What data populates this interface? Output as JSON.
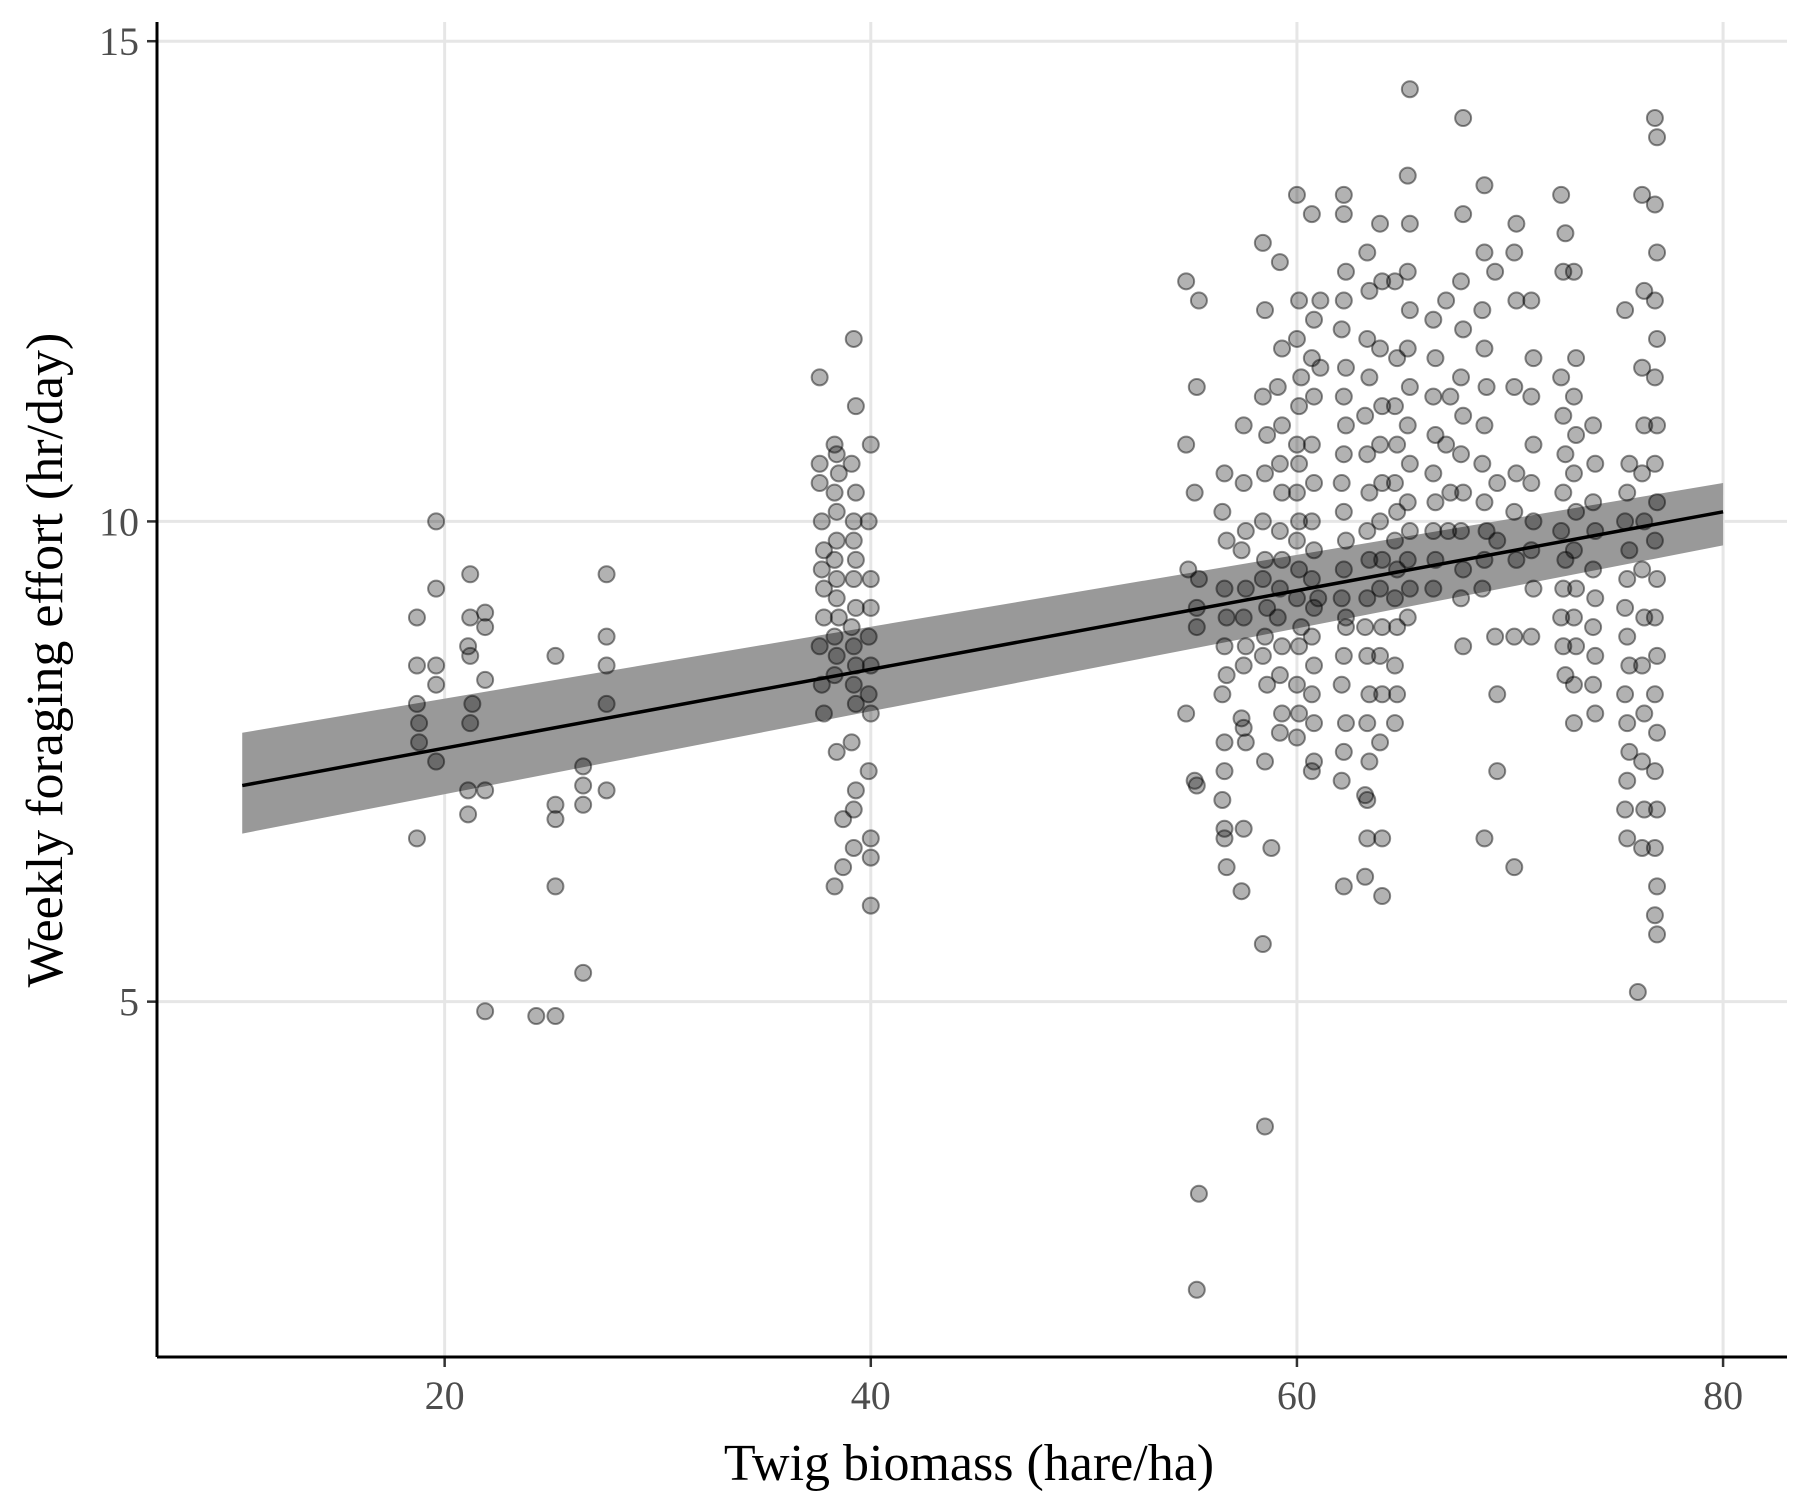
{
  "chart_data": {
    "type": "scatter",
    "xlabel": "Twig biomass (hare/ha)",
    "ylabel": "Weekly foraging effort (hr/day)",
    "xlim": [
      6.5,
      83
    ],
    "ylim": [
      1.3,
      15.2
    ],
    "x_ticks": [
      "20",
      "40",
      "60",
      "80"
    ],
    "y_ticks": [
      "5",
      "10",
      "15"
    ],
    "grid": true,
    "point_color": "#000000",
    "band_color": "#999999",
    "line_color": "#000000",
    "fit": {
      "type": "linear",
      "x": [
        10.5,
        80
      ],
      "y": [
        7.25,
        10.1
      ]
    },
    "ci_band": {
      "x": [
        10.5,
        80
      ],
      "lower": [
        6.75,
        9.75
      ],
      "upper": [
        7.8,
        10.4
      ]
    },
    "points": [
      [
        18.7,
        9.0
      ],
      [
        18.7,
        8.5
      ],
      [
        18.7,
        8.1
      ],
      [
        18.8,
        7.9
      ],
      [
        18.8,
        7.7
      ],
      [
        18.7,
        6.7
      ],
      [
        19.6,
        10.0
      ],
      [
        19.6,
        9.3
      ],
      [
        19.6,
        8.5
      ],
      [
        19.6,
        8.3
      ],
      [
        19.6,
        7.5
      ],
      [
        21.2,
        9.45
      ],
      [
        21.2,
        9.0
      ],
      [
        21.1,
        8.7
      ],
      [
        21.2,
        8.6
      ],
      [
        21.3,
        8.1
      ],
      [
        21.2,
        7.9
      ],
      [
        21.1,
        7.2
      ],
      [
        21.1,
        6.95
      ],
      [
        21.9,
        9.05
      ],
      [
        21.9,
        8.9
      ],
      [
        21.9,
        8.35
      ],
      [
        21.9,
        7.2
      ],
      [
        21.9,
        4.9
      ],
      [
        24.3,
        4.85
      ],
      [
        25.2,
        8.6
      ],
      [
        25.2,
        7.05
      ],
      [
        25.2,
        6.9
      ],
      [
        25.2,
        6.2
      ],
      [
        25.2,
        4.85
      ],
      [
        26.5,
        7.45
      ],
      [
        26.5,
        7.25
      ],
      [
        26.5,
        7.05
      ],
      [
        26.5,
        5.3
      ],
      [
        27.6,
        9.45
      ],
      [
        27.6,
        8.8
      ],
      [
        27.6,
        8.5
      ],
      [
        27.6,
        8.1
      ],
      [
        27.6,
        7.2
      ],
      [
        37.6,
        11.5
      ],
      [
        37.6,
        10.6
      ],
      [
        37.6,
        10.4
      ],
      [
        37.7,
        10.0
      ],
      [
        37.8,
        9.7
      ],
      [
        37.7,
        9.5
      ],
      [
        37.8,
        9.3
      ],
      [
        37.8,
        9.0
      ],
      [
        37.6,
        8.7
      ],
      [
        37.7,
        8.3
      ],
      [
        37.8,
        8.0
      ],
      [
        38.3,
        10.8
      ],
      [
        38.4,
        10.7
      ],
      [
        38.5,
        10.5
      ],
      [
        38.3,
        10.3
      ],
      [
        38.4,
        10.1
      ],
      [
        38.4,
        9.8
      ],
      [
        38.3,
        9.6
      ],
      [
        38.4,
        9.4
      ],
      [
        38.4,
        9.2
      ],
      [
        38.5,
        9.0
      ],
      [
        38.3,
        8.8
      ],
      [
        38.4,
        8.6
      ],
      [
        38.3,
        8.4
      ],
      [
        38.4,
        7.6
      ],
      [
        38.3,
        6.2
      ],
      [
        39.2,
        11.9
      ],
      [
        39.3,
        11.2
      ],
      [
        39.1,
        10.6
      ],
      [
        39.3,
        10.3
      ],
      [
        39.2,
        10.0
      ],
      [
        39.2,
        9.8
      ],
      [
        39.3,
        9.6
      ],
      [
        39.2,
        9.4
      ],
      [
        39.3,
        9.1
      ],
      [
        39.1,
        8.9
      ],
      [
        39.2,
        8.7
      ],
      [
        39.3,
        8.5
      ],
      [
        39.2,
        8.3
      ],
      [
        39.3,
        8.1
      ],
      [
        39.1,
        7.7
      ],
      [
        39.3,
        7.2
      ],
      [
        39.2,
        7.0
      ],
      [
        39.2,
        6.6
      ],
      [
        38.7,
        6.9
      ],
      [
        38.7,
        6.4
      ],
      [
        40.0,
        10.8
      ],
      [
        39.9,
        10.0
      ],
      [
        40.0,
        9.4
      ],
      [
        40.0,
        9.1
      ],
      [
        39.9,
        8.8
      ],
      [
        40.0,
        8.5
      ],
      [
        39.9,
        8.2
      ],
      [
        40.0,
        8.0
      ],
      [
        39.9,
        7.4
      ],
      [
        40.0,
        6.7
      ],
      [
        40.0,
        6.5
      ],
      [
        40.0,
        6.0
      ],
      [
        54.8,
        12.5
      ],
      [
        54.8,
        10.8
      ],
      [
        54.9,
        9.5
      ],
      [
        54.8,
        8.0
      ],
      [
        55.3,
        11.4
      ],
      [
        55.2,
        10.3
      ],
      [
        55.4,
        9.4
      ],
      [
        55.3,
        9.1
      ],
      [
        55.3,
        8.9
      ],
      [
        55.2,
        7.3
      ],
      [
        55.3,
        7.25
      ],
      [
        55.4,
        3.0
      ],
      [
        55.3,
        2.0
      ],
      [
        55.4,
        12.3
      ],
      [
        56.6,
        10.5
      ],
      [
        56.5,
        10.1
      ],
      [
        56.7,
        9.8
      ],
      [
        56.6,
        9.3
      ],
      [
        56.7,
        9.0
      ],
      [
        56.6,
        8.7
      ],
      [
        56.7,
        8.4
      ],
      [
        56.5,
        8.2
      ],
      [
        56.6,
        7.7
      ],
      [
        56.6,
        7.4
      ],
      [
        56.5,
        7.1
      ],
      [
        56.6,
        6.8
      ],
      [
        56.6,
        6.7
      ],
      [
        56.7,
        6.4
      ],
      [
        57.5,
        11.0
      ],
      [
        57.5,
        10.4
      ],
      [
        57.6,
        9.9
      ],
      [
        57.4,
        9.7
      ],
      [
        57.6,
        9.3
      ],
      [
        57.5,
        9.0
      ],
      [
        57.6,
        8.7
      ],
      [
        57.5,
        8.5
      ],
      [
        57.4,
        7.95
      ],
      [
        57.5,
        7.85
      ],
      [
        57.6,
        7.7
      ],
      [
        57.5,
        6.8
      ],
      [
        57.4,
        6.15
      ],
      [
        58.4,
        12.9
      ],
      [
        58.5,
        12.2
      ],
      [
        58.4,
        11.3
      ],
      [
        58.6,
        10.9
      ],
      [
        58.5,
        10.5
      ],
      [
        58.4,
        10.0
      ],
      [
        58.5,
        9.6
      ],
      [
        58.4,
        9.4
      ],
      [
        58.6,
        9.1
      ],
      [
        58.5,
        8.8
      ],
      [
        58.4,
        8.6
      ],
      [
        58.6,
        8.3
      ],
      [
        58.5,
        7.5
      ],
      [
        58.4,
        5.6
      ],
      [
        58.5,
        3.7
      ],
      [
        58.8,
        6.6
      ],
      [
        59.2,
        12.7
      ],
      [
        59.3,
        11.8
      ],
      [
        59.1,
        11.4
      ],
      [
        59.3,
        11.0
      ],
      [
        59.2,
        10.6
      ],
      [
        59.3,
        10.3
      ],
      [
        59.2,
        9.9
      ],
      [
        59.3,
        9.6
      ],
      [
        59.2,
        9.3
      ],
      [
        59.1,
        9.0
      ],
      [
        59.3,
        8.7
      ],
      [
        59.2,
        8.4
      ],
      [
        59.3,
        8.0
      ],
      [
        59.2,
        7.8
      ],
      [
        60.0,
        13.4
      ],
      [
        60.1,
        12.3
      ],
      [
        60.0,
        11.9
      ],
      [
        60.2,
        11.5
      ],
      [
        60.1,
        11.2
      ],
      [
        60.0,
        10.8
      ],
      [
        60.1,
        10.6
      ],
      [
        60.0,
        10.3
      ],
      [
        60.1,
        10.0
      ],
      [
        60.0,
        9.8
      ],
      [
        60.1,
        9.5
      ],
      [
        60.0,
        9.2
      ],
      [
        60.2,
        8.9
      ],
      [
        60.1,
        8.7
      ],
      [
        60.0,
        8.3
      ],
      [
        60.1,
        8.0
      ],
      [
        60.0,
        7.75
      ],
      [
        60.7,
        13.2
      ],
      [
        60.8,
        12.1
      ],
      [
        60.7,
        11.7
      ],
      [
        60.8,
        11.3
      ],
      [
        60.7,
        10.8
      ],
      [
        60.8,
        10.4
      ],
      [
        60.7,
        10.0
      ],
      [
        60.8,
        9.7
      ],
      [
        60.7,
        9.4
      ],
      [
        60.8,
        9.1
      ],
      [
        60.7,
        8.8
      ],
      [
        60.8,
        8.5
      ],
      [
        60.7,
        8.2
      ],
      [
        60.8,
        7.9
      ],
      [
        60.7,
        7.4
      ],
      [
        60.8,
        7.5
      ],
      [
        61.1,
        12.3
      ],
      [
        61.1,
        11.6
      ],
      [
        61.0,
        9.2
      ],
      [
        62.2,
        13.4
      ],
      [
        62.2,
        13.2
      ],
      [
        62.3,
        12.6
      ],
      [
        62.2,
        12.3
      ],
      [
        62.1,
        12.0
      ],
      [
        62.3,
        11.6
      ],
      [
        62.2,
        11.3
      ],
      [
        62.3,
        11.0
      ],
      [
        62.2,
        10.7
      ],
      [
        62.1,
        10.4
      ],
      [
        62.2,
        10.1
      ],
      [
        62.3,
        9.8
      ],
      [
        62.2,
        9.5
      ],
      [
        62.1,
        9.2
      ],
      [
        62.3,
        8.9
      ],
      [
        62.2,
        8.6
      ],
      [
        62.1,
        8.3
      ],
      [
        62.3,
        7.9
      ],
      [
        62.2,
        7.6
      ],
      [
        62.1,
        7.3
      ],
      [
        62.2,
        6.2
      ],
      [
        62.3,
        9.0
      ],
      [
        63.3,
        12.8
      ],
      [
        63.4,
        12.4
      ],
      [
        63.3,
        11.9
      ],
      [
        63.4,
        11.5
      ],
      [
        63.2,
        11.1
      ],
      [
        63.3,
        10.7
      ],
      [
        63.4,
        10.3
      ],
      [
        63.3,
        9.9
      ],
      [
        63.4,
        9.6
      ],
      [
        63.3,
        9.2
      ],
      [
        63.2,
        8.9
      ],
      [
        63.3,
        8.6
      ],
      [
        63.4,
        8.2
      ],
      [
        63.3,
        7.9
      ],
      [
        63.4,
        7.5
      ],
      [
        63.2,
        7.15
      ],
      [
        63.3,
        7.1
      ],
      [
        63.3,
        6.7
      ],
      [
        63.2,
        6.3
      ],
      [
        63.9,
        13.1
      ],
      [
        64.0,
        12.5
      ],
      [
        63.9,
        11.8
      ],
      [
        64.0,
        11.2
      ],
      [
        63.9,
        10.8
      ],
      [
        64.0,
        10.4
      ],
      [
        63.9,
        10.0
      ],
      [
        64.0,
        9.6
      ],
      [
        63.9,
        9.3
      ],
      [
        64.0,
        8.9
      ],
      [
        63.9,
        8.6
      ],
      [
        64.0,
        8.2
      ],
      [
        63.9,
        7.7
      ],
      [
        64.0,
        6.7
      ],
      [
        64.0,
        6.1
      ],
      [
        64.6,
        12.5
      ],
      [
        64.7,
        11.7
      ],
      [
        64.6,
        11.2
      ],
      [
        64.7,
        10.8
      ],
      [
        64.6,
        10.4
      ],
      [
        64.7,
        10.1
      ],
      [
        64.6,
        9.8
      ],
      [
        64.7,
        9.5
      ],
      [
        64.6,
        9.2
      ],
      [
        64.7,
        8.9
      ],
      [
        64.6,
        8.5
      ],
      [
        64.7,
        8.2
      ],
      [
        64.6,
        7.9
      ],
      [
        65.3,
        14.5
      ],
      [
        65.2,
        13.6
      ],
      [
        65.3,
        13.1
      ],
      [
        65.2,
        12.6
      ],
      [
        65.3,
        12.2
      ],
      [
        65.2,
        11.8
      ],
      [
        65.3,
        11.4
      ],
      [
        65.2,
        11.0
      ],
      [
        65.3,
        10.6
      ],
      [
        65.2,
        10.2
      ],
      [
        65.3,
        9.9
      ],
      [
        65.2,
        9.6
      ],
      [
        65.3,
        9.3
      ],
      [
        65.2,
        9.0
      ],
      [
        66.4,
        12.1
      ],
      [
        66.5,
        11.7
      ],
      [
        66.4,
        11.3
      ],
      [
        66.5,
        10.9
      ],
      [
        66.4,
        10.5
      ],
      [
        66.5,
        10.2
      ],
      [
        66.4,
        9.9
      ],
      [
        66.5,
        9.6
      ],
      [
        66.4,
        9.3
      ],
      [
        67.0,
        12.3
      ],
      [
        67.2,
        11.3
      ],
      [
        67.0,
        10.8
      ],
      [
        67.2,
        10.3
      ],
      [
        67.1,
        9.9
      ],
      [
        67.8,
        14.2
      ],
      [
        67.8,
        13.2
      ],
      [
        67.7,
        12.5
      ],
      [
        67.8,
        12.0
      ],
      [
        67.7,
        11.5
      ],
      [
        67.8,
        11.1
      ],
      [
        67.7,
        10.7
      ],
      [
        67.8,
        10.3
      ],
      [
        67.7,
        9.9
      ],
      [
        67.8,
        9.5
      ],
      [
        67.7,
        9.2
      ],
      [
        67.8,
        8.7
      ],
      [
        68.8,
        13.5
      ],
      [
        68.8,
        12.8
      ],
      [
        68.7,
        12.2
      ],
      [
        68.8,
        11.8
      ],
      [
        68.9,
        11.4
      ],
      [
        68.8,
        11.0
      ],
      [
        68.7,
        10.6
      ],
      [
        68.8,
        10.2
      ],
      [
        68.9,
        9.9
      ],
      [
        68.8,
        9.6
      ],
      [
        68.7,
        9.3
      ],
      [
        68.8,
        6.7
      ],
      [
        69.3,
        12.6
      ],
      [
        69.4,
        10.4
      ],
      [
        69.4,
        9.8
      ],
      [
        69.3,
        8.8
      ],
      [
        69.4,
        8.2
      ],
      [
        69.4,
        7.4
      ],
      [
        70.3,
        13.1
      ],
      [
        70.2,
        12.8
      ],
      [
        70.3,
        12.3
      ],
      [
        70.2,
        11.4
      ],
      [
        70.3,
        10.5
      ],
      [
        70.2,
        10.1
      ],
      [
        70.3,
        9.6
      ],
      [
        70.2,
        8.8
      ],
      [
        70.2,
        6.4
      ],
      [
        71.0,
        12.3
      ],
      [
        71.1,
        11.7
      ],
      [
        71.0,
        11.3
      ],
      [
        71.1,
        10.8
      ],
      [
        71.0,
        10.4
      ],
      [
        71.1,
        10.0
      ],
      [
        71.0,
        9.7
      ],
      [
        71.1,
        9.3
      ],
      [
        71.0,
        8.8
      ],
      [
        72.4,
        13.4
      ],
      [
        72.6,
        13.0
      ],
      [
        72.5,
        12.6
      ],
      [
        72.4,
        11.5
      ],
      [
        72.5,
        11.1
      ],
      [
        72.6,
        10.7
      ],
      [
        72.5,
        10.3
      ],
      [
        72.4,
        9.9
      ],
      [
        72.6,
        9.6
      ],
      [
        72.5,
        9.3
      ],
      [
        72.4,
        9.0
      ],
      [
        72.5,
        8.7
      ],
      [
        72.6,
        8.4
      ],
      [
        73.0,
        12.6
      ],
      [
        73.1,
        11.7
      ],
      [
        73.0,
        11.3
      ],
      [
        73.1,
        10.9
      ],
      [
        73.0,
        10.5
      ],
      [
        73.1,
        10.1
      ],
      [
        73.0,
        9.7
      ],
      [
        73.1,
        9.3
      ],
      [
        73.0,
        9.0
      ],
      [
        73.1,
        8.7
      ],
      [
        73.0,
        8.3
      ],
      [
        73.0,
        7.9
      ],
      [
        73.9,
        11.0
      ],
      [
        74.0,
        10.6
      ],
      [
        73.9,
        10.2
      ],
      [
        74.0,
        9.9
      ],
      [
        73.9,
        9.5
      ],
      [
        74.0,
        9.2
      ],
      [
        73.9,
        8.9
      ],
      [
        74.0,
        8.6
      ],
      [
        73.9,
        8.3
      ],
      [
        74.0,
        8.0
      ],
      [
        75.4,
        12.2
      ],
      [
        75.6,
        10.6
      ],
      [
        75.5,
        10.3
      ],
      [
        75.4,
        10.0
      ],
      [
        75.6,
        9.7
      ],
      [
        75.5,
        9.4
      ],
      [
        75.4,
        9.1
      ],
      [
        75.5,
        8.8
      ],
      [
        75.6,
        8.5
      ],
      [
        75.4,
        8.2
      ],
      [
        75.5,
        7.9
      ],
      [
        75.6,
        7.6
      ],
      [
        75.5,
        7.3
      ],
      [
        75.4,
        7.0
      ],
      [
        75.5,
        6.7
      ],
      [
        76.0,
        5.1
      ],
      [
        76.2,
        13.4
      ],
      [
        76.3,
        12.4
      ],
      [
        76.2,
        11.6
      ],
      [
        76.3,
        11.0
      ],
      [
        76.2,
        10.5
      ],
      [
        76.3,
        10.0
      ],
      [
        76.2,
        9.5
      ],
      [
        76.3,
        9.0
      ],
      [
        76.2,
        8.5
      ],
      [
        76.3,
        8.0
      ],
      [
        76.2,
        7.5
      ],
      [
        76.3,
        7.0
      ],
      [
        76.2,
        6.6
      ],
      [
        76.8,
        14.2
      ],
      [
        76.9,
        14.0
      ],
      [
        76.8,
        13.3
      ],
      [
        76.9,
        12.8
      ],
      [
        76.8,
        12.3
      ],
      [
        76.9,
        11.9
      ],
      [
        76.8,
        11.5
      ],
      [
        76.9,
        11.0
      ],
      [
        76.8,
        10.6
      ],
      [
        76.9,
        10.2
      ],
      [
        76.8,
        9.8
      ],
      [
        76.9,
        9.4
      ],
      [
        76.8,
        9.0
      ],
      [
        76.9,
        8.6
      ],
      [
        76.8,
        8.2
      ],
      [
        76.9,
        7.8
      ],
      [
        76.8,
        7.4
      ],
      [
        76.9,
        7.0
      ],
      [
        76.8,
        6.6
      ],
      [
        76.9,
        6.2
      ],
      [
        76.8,
        5.9
      ],
      [
        76.9,
        5.7
      ]
    ]
  }
}
